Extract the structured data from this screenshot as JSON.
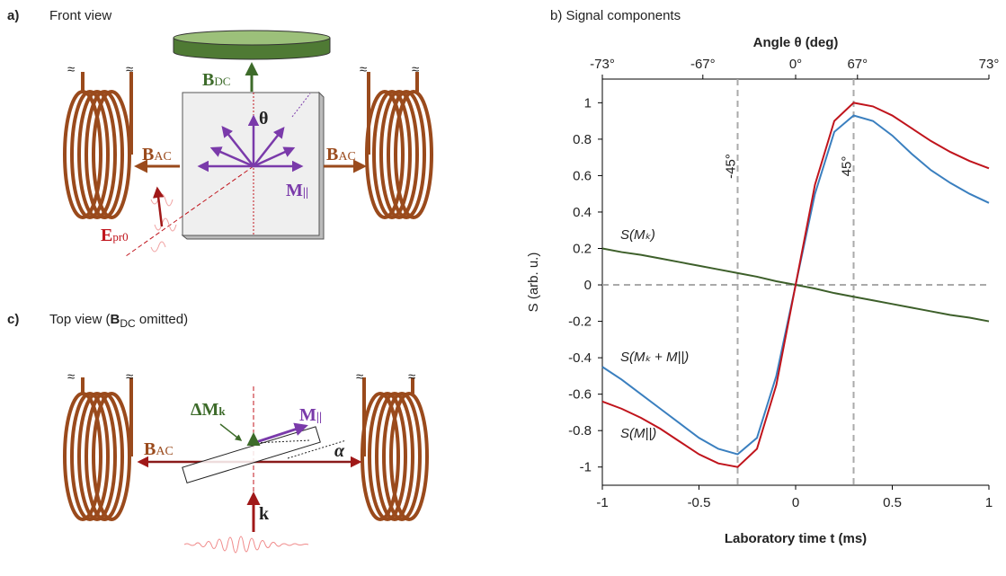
{
  "panel_a": {
    "letter": "a)",
    "title": "Front view",
    "break_mark": "≈",
    "b_dc": {
      "main": "B",
      "sub": "DC"
    },
    "theta": "θ",
    "b_ac": {
      "main": "B",
      "sub": "AC"
    },
    "m_par": {
      "main": "M",
      "sub": "||"
    },
    "e_pr": {
      "main": "E",
      "sub": "pr0"
    }
  },
  "panel_c": {
    "letter": "c)",
    "title_start": "Top view (",
    "title_b": "B",
    "title_sub": "DC",
    "title_end": " omitted)",
    "delta_m": {
      "main": "ΔM",
      "sub": "k"
    },
    "m_par": {
      "main": "M",
      "sub": "||"
    },
    "b_ac": {
      "main": "B",
      "sub": "AC"
    },
    "alpha": "α",
    "k": "k"
  },
  "chart_data": {
    "type": "line",
    "title": "b) Signal components",
    "x_label": "Laboratory time t (ms)",
    "y_label": "S (arb. u.)",
    "x2_label": "Angle θ (deg)",
    "x": [
      -1,
      -0.9,
      -0.8,
      -0.7,
      -0.6,
      -0.5,
      -0.4,
      -0.3,
      -0.2,
      -0.1,
      0,
      0.1,
      0.2,
      0.3,
      0.4,
      0.5,
      0.6,
      0.7,
      0.8,
      0.9,
      1
    ],
    "series": [
      {
        "name": "S(Mₖ)",
        "color": "#3d5f2a",
        "values": [
          0.2,
          0.18,
          0.165,
          0.145,
          0.125,
          0.105,
          0.085,
          0.065,
          0.045,
          0.02,
          0,
          -0.02,
          -0.045,
          -0.065,
          -0.085,
          -0.105,
          -0.125,
          -0.145,
          -0.165,
          -0.18,
          -0.2
        ]
      },
      {
        "name": "S(Mₖ + M||)",
        "color": "#3a7fbf",
        "values": [
          -0.45,
          -0.52,
          -0.6,
          -0.68,
          -0.76,
          -0.84,
          -0.9,
          -0.93,
          -0.84,
          -0.5,
          0,
          0.5,
          0.84,
          0.93,
          0.9,
          0.82,
          0.72,
          0.63,
          0.56,
          0.5,
          0.45
        ]
      },
      {
        "name": "S(M||)",
        "color": "#c0141c",
        "values": [
          -0.64,
          -0.68,
          -0.73,
          -0.79,
          -0.86,
          -0.93,
          -0.98,
          -1.0,
          -0.9,
          -0.55,
          0,
          0.55,
          0.9,
          1.0,
          0.98,
          0.93,
          0.86,
          0.79,
          0.73,
          0.68,
          0.64
        ]
      }
    ],
    "xlim": [
      -1,
      1
    ],
    "ylim": [
      -1.1,
      1.13
    ],
    "xticks": [
      -1,
      -0.5,
      0,
      0.5,
      1
    ],
    "yticks": [
      -1,
      -0.8,
      -0.6,
      -0.4,
      -0.2,
      0,
      0.2,
      0.4,
      0.6,
      0.8,
      1
    ],
    "x2ticks": [
      {
        "value": -1,
        "label": "-73°"
      },
      {
        "value": -0.48,
        "label": "-67°"
      },
      {
        "value": 0,
        "label": "0°"
      },
      {
        "value": 0.32,
        "label": "67°"
      },
      {
        "value": 1,
        "label": "73°"
      }
    ],
    "ref_x": [
      -0.3,
      0.3
    ],
    "ref_x_labels": [
      "-45°",
      "45°"
    ],
    "ref_y": [
      0
    ]
  }
}
